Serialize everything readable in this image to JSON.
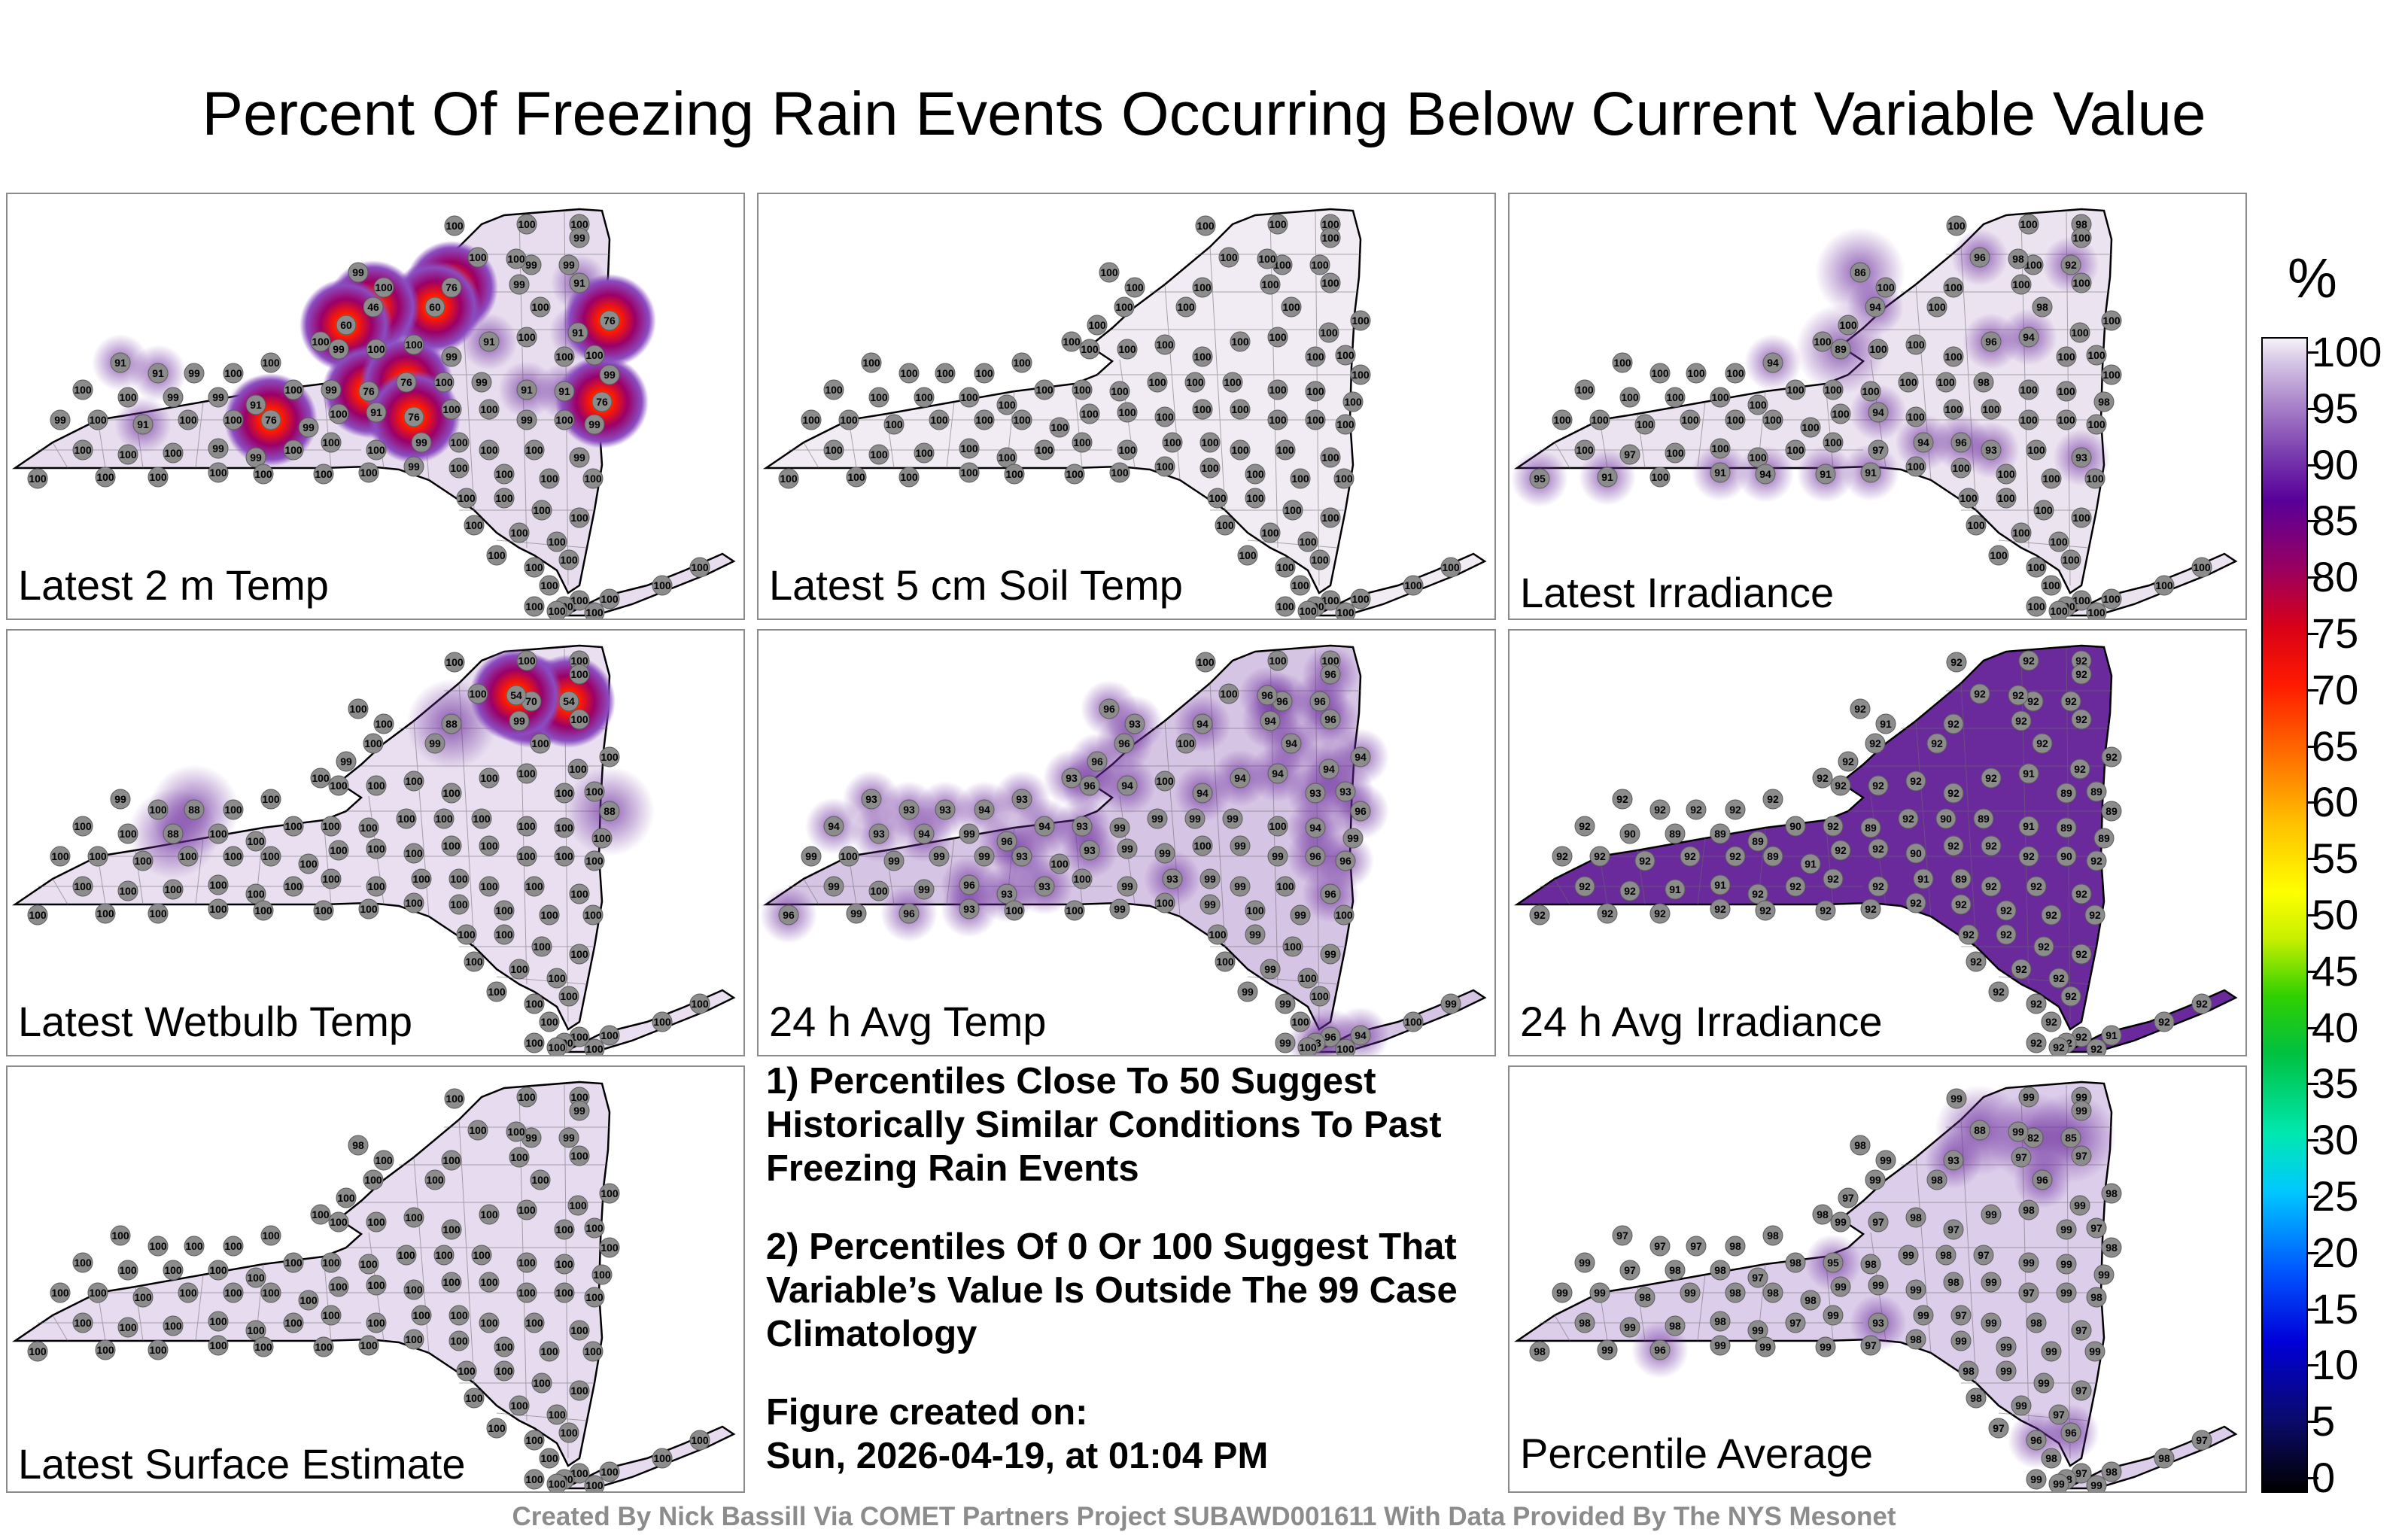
{
  "title": "Percent Of Freezing Rain Events Occurring Below Current Variable Value",
  "panels": [
    {
      "label": "Latest 2 m Temp",
      "fill": "#e8ddef",
      "hot": true,
      "values": [
        100,
        100,
        100,
        99,
        99,
        100,
        100,
        99,
        99,
        100,
        76,
        60,
        46,
        60,
        99,
        91,
        100,
        76,
        91,
        91,
        91,
        99,
        100,
        100,
        100,
        99,
        100,
        100,
        99,
        91,
        100,
        100,
        100,
        99,
        100,
        100,
        99,
        99,
        91,
        100,
        99,
        76,
        76,
        100,
        99,
        91,
        91,
        76,
        99,
        100,
        91,
        100,
        100,
        76,
        99,
        100,
        91,
        76,
        100,
        100,
        99,
        100,
        99,
        100,
        100,
        100,
        99,
        99,
        100,
        100,
        100,
        99,
        100,
        100,
        100,
        99,
        100,
        100,
        100,
        100,
        100,
        100,
        100,
        99,
        100,
        100,
        100,
        100,
        100,
        100,
        100,
        100,
        100,
        100,
        100,
        100,
        100,
        100,
        100,
        100,
        100,
        100,
        100,
        100,
        100,
        100,
        100,
        100,
        100
      ]
    },
    {
      "label": "Latest 5 cm Soil Temp",
      "fill": "#f1ecf4",
      "hot": false,
      "values": [
        100,
        100,
        100,
        100,
        100,
        100,
        100,
        100,
        100,
        100,
        100,
        100,
        100,
        100,
        100,
        100,
        100,
        100,
        100,
        100,
        100,
        100,
        100,
        100,
        100,
        100,
        100,
        100,
        100,
        100,
        100,
        100,
        100,
        100,
        100,
        100,
        100,
        100,
        100,
        100,
        100,
        100,
        100,
        100,
        100,
        100,
        100,
        100,
        100,
        100,
        100,
        100,
        100,
        100,
        100,
        100,
        100,
        100,
        100,
        100,
        100,
        100,
        100,
        100,
        100,
        100,
        100,
        100,
        100,
        100,
        100,
        100,
        100,
        100,
        100,
        100,
        100,
        100,
        100,
        100,
        100,
        100,
        100,
        100,
        100,
        100,
        100,
        100,
        100,
        100,
        100,
        100,
        100,
        100,
        100,
        100,
        100,
        100,
        100,
        100,
        100,
        100,
        100,
        100,
        100,
        100,
        100,
        100,
        100
      ]
    },
    {
      "label": "Latest Irradiance",
      "fill": "#ece3f1",
      "hot": false,
      "values": [
        100,
        100,
        98,
        100,
        86,
        100,
        96,
        100,
        92,
        98,
        100,
        100,
        94,
        100,
        100,
        100,
        98,
        100,
        100,
        100,
        100,
        100,
        100,
        94,
        100,
        89,
        100,
        100,
        100,
        96,
        94,
        100,
        100,
        100,
        100,
        100,
        100,
        100,
        100,
        100,
        100,
        100,
        100,
        100,
        98,
        100,
        100,
        98,
        100,
        100,
        100,
        100,
        100,
        100,
        100,
        100,
        94,
        100,
        100,
        100,
        100,
        100,
        100,
        100,
        97,
        100,
        100,
        100,
        100,
        100,
        97,
        94,
        96,
        93,
        100,
        93,
        95,
        91,
        100,
        91,
        94,
        91,
        91,
        100,
        100,
        100,
        100,
        100,
        100,
        100,
        100,
        100,
        100,
        100,
        100,
        100,
        100,
        100,
        100,
        100,
        100,
        100,
        100,
        100,
        100,
        100,
        100,
        100,
        100
      ]
    },
    {
      "label": "Latest Wetbulb Temp",
      "fill": "#e9dff0",
      "hot": true,
      "values": [
        100,
        100,
        100,
        100,
        100,
        100,
        100,
        70,
        54,
        54,
        88,
        99,
        100,
        99,
        99,
        100,
        100,
        100,
        100,
        99,
        100,
        88,
        100,
        100,
        100,
        100,
        100,
        100,
        100,
        100,
        100,
        100,
        100,
        88,
        100,
        100,
        88,
        100,
        100,
        100,
        100,
        100,
        100,
        100,
        100,
        100,
        100,
        100,
        100,
        100,
        100,
        100,
        100,
        100,
        100,
        100,
        100,
        100,
        100,
        100,
        100,
        100,
        100,
        100,
        100,
        100,
        100,
        100,
        100,
        100,
        100,
        100,
        100,
        100,
        100,
        100,
        100,
        100,
        100,
        100,
        100,
        100,
        100,
        100,
        100,
        100,
        100,
        100,
        100,
        100,
        100,
        100,
        100,
        100,
        100,
        100,
        100,
        100,
        100,
        100,
        100,
        100,
        100,
        100,
        100,
        100,
        100,
        100,
        100
      ]
    },
    {
      "label": "24 h Avg Temp",
      "fill": "#d6c4e4",
      "hot": false,
      "values": [
        100,
        100,
        100,
        96,
        96,
        93,
        100,
        96,
        96,
        96,
        94,
        100,
        96,
        96,
        94,
        96,
        94,
        94,
        94,
        93,
        93,
        93,
        94,
        93,
        93,
        96,
        94,
        100,
        94,
        94,
        94,
        93,
        93,
        96,
        94,
        93,
        94,
        99,
        96,
        94,
        93,
        99,
        99,
        99,
        99,
        100,
        94,
        99,
        99,
        100,
        99,
        99,
        99,
        93,
        100,
        93,
        99,
        99,
        100,
        99,
        99,
        96,
        96,
        99,
        100,
        99,
        96,
        93,
        93,
        100,
        99,
        93,
        99,
        99,
        100,
        96,
        96,
        99,
        96,
        93,
        100,
        100,
        99,
        100,
        99,
        100,
        99,
        100,
        100,
        99,
        100,
        99,
        100,
        99,
        100,
        99,
        99,
        100,
        100,
        96,
        93,
        94,
        100,
        99,
        99,
        100,
        100,
        93,
        93
      ]
    },
    {
      "label": "24 h Avg Irradiance",
      "fill": "#6a2a9c",
      "hot": false,
      "values": [
        92,
        92,
        92,
        92,
        92,
        91,
        92,
        92,
        92,
        92,
        92,
        92,
        92,
        92,
        92,
        92,
        92,
        92,
        92,
        92,
        92,
        92,
        92,
        92,
        92,
        92,
        92,
        92,
        92,
        92,
        91,
        89,
        89,
        89,
        92,
        90,
        89,
        89,
        89,
        90,
        92,
        89,
        92,
        90,
        89,
        91,
        89,
        89,
        92,
        92,
        92,
        92,
        92,
        89,
        91,
        92,
        92,
        90,
        92,
        92,
        92,
        90,
        92,
        92,
        92,
        91,
        91,
        92,
        92,
        92,
        92,
        91,
        89,
        92,
        92,
        92,
        92,
        92,
        92,
        92,
        92,
        92,
        92,
        92,
        92,
        92,
        92,
        92,
        92,
        92,
        92,
        92,
        92,
        92,
        92,
        92,
        92,
        92,
        92,
        92,
        92,
        91,
        92,
        92,
        92,
        92,
        92,
        92,
        92
      ]
    },
    {
      "label": "Latest Surface Estimate",
      "fill": "#e7dcef",
      "hot": false,
      "values": [
        100,
        100,
        100,
        99,
        98,
        100,
        100,
        99,
        99,
        100,
        100,
        100,
        100,
        100,
        100,
        100,
        100,
        100,
        100,
        100,
        100,
        100,
        100,
        100,
        100,
        100,
        100,
        100,
        100,
        100,
        100,
        100,
        100,
        100,
        100,
        100,
        100,
        100,
        100,
        100,
        100,
        100,
        100,
        100,
        100,
        100,
        100,
        100,
        100,
        100,
        100,
        100,
        100,
        100,
        100,
        100,
        100,
        100,
        100,
        100,
        100,
        100,
        100,
        100,
        100,
        100,
        100,
        100,
        100,
        100,
        100,
        100,
        100,
        100,
        100,
        100,
        100,
        100,
        100,
        100,
        100,
        100,
        100,
        100,
        100,
        100,
        100,
        100,
        100,
        100,
        100,
        100,
        100,
        100,
        100,
        100,
        100,
        100,
        100,
        100,
        100,
        100,
        100,
        100,
        100,
        100,
        100,
        100,
        100
      ]
    },
    {
      "label": "Percentile Average",
      "fill": "#dccdea",
      "hot": false,
      "values": [
        99,
        99,
        99,
        99,
        98,
        99,
        88,
        82,
        85,
        99,
        93,
        98,
        99,
        97,
        97,
        97,
        96,
        98,
        99,
        97,
        97,
        97,
        98,
        98,
        98,
        99,
        97,
        98,
        97,
        99,
        98,
        99,
        97,
        98,
        99,
        97,
        98,
        98,
        97,
        98,
        95,
        98,
        99,
        98,
        97,
        99,
        99,
        99,
        99,
        99,
        98,
        99,
        98,
        98,
        98,
        99,
        99,
        99,
        98,
        99,
        97,
        99,
        98,
        98,
        99,
        98,
        98,
        99,
        97,
        99,
        93,
        99,
        97,
        99,
        98,
        97,
        98,
        99,
        96,
        99,
        99,
        99,
        97,
        98,
        99,
        99,
        99,
        99,
        98,
        99,
        99,
        97,
        98,
        99,
        97,
        97,
        96,
        96,
        98,
        97,
        98,
        98,
        98,
        97,
        99,
        99,
        99,
        99,
        99
      ]
    }
  ],
  "notes": [
    "1) Percentiles Close To 50 Suggest Historically Similar Conditions To Past Freezing Rain Events",
    "2) Percentiles Of 0 Or 100 Suggest That Variable’s Value Is Outside The 99 Case Climatology",
    "Figure created on:",
    "Sun, 2026-04-19, at 01:04 PM"
  ],
  "colorbar": {
    "unit": "%",
    "ticks": [
      "100",
      "95",
      "90",
      "85",
      "80",
      "75",
      "70",
      "65",
      "60",
      "55",
      "50",
      "45",
      "40",
      "35",
      "30",
      "25",
      "20",
      "15",
      "10",
      "5",
      "0"
    ]
  },
  "credit": "Created By Nick Bassill Via COMET Partners Project SUBAWD001611 With Data Provided By The NYS Mesonet"
}
